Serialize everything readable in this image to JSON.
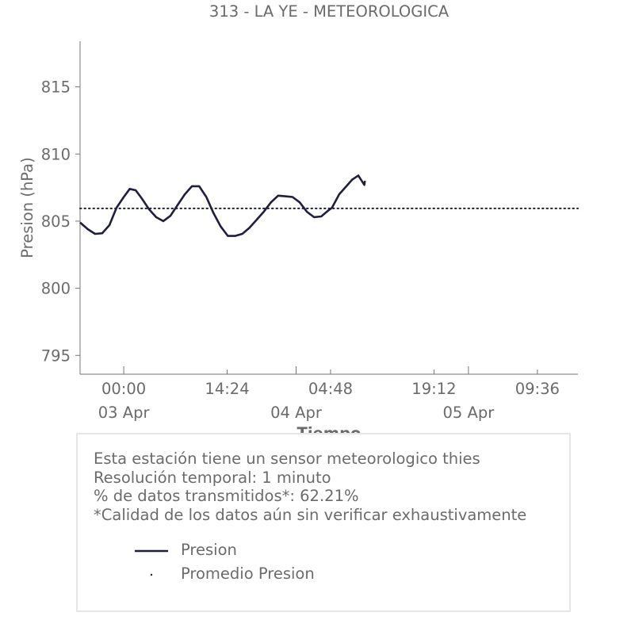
{
  "chart_data": {
    "type": "line",
    "title": "313 - LA YE - METEOROLOGICA",
    "xlabel": "Tiempo",
    "ylabel": "Presion (hPa)",
    "ylim": [
      793.6,
      818.4
    ],
    "xlim": [
      "2025-04-02 17:55",
      "2025-04-05 15:15"
    ],
    "y_ticks": [
      795,
      800,
      805,
      810,
      815
    ],
    "x_ticks": [
      {
        "t": "2025-04-03 00:00",
        "label": "00:00",
        "sublabel": "03 Apr"
      },
      {
        "t": "2025-04-03 14:24",
        "label": "14:24",
        "sublabel": ""
      },
      {
        "t": "2025-04-04 00:00",
        "label": "",
        "sublabel": "04 Apr"
      },
      {
        "t": "2025-04-04 04:48",
        "label": "04:48",
        "sublabel": ""
      },
      {
        "t": "2025-04-04 19:12",
        "label": "19:12",
        "sublabel": ""
      },
      {
        "t": "2025-04-05 00:00",
        "label": "",
        "sublabel": "05 Apr"
      },
      {
        "t": "2025-04-05 09:36",
        "label": "09:36",
        "sublabel": ""
      }
    ],
    "grid": false,
    "legend_position": "below",
    "series": [
      {
        "name": "Presion",
        "style": "solid",
        "color": "#1f1f3d",
        "points": [
          [
            "2025-04-02 17:55",
            804.9
          ],
          [
            "2025-04-02 19:00",
            804.4
          ],
          [
            "2025-04-02 20:00",
            804.05
          ],
          [
            "2025-04-02 21:00",
            804.1
          ],
          [
            "2025-04-02 22:00",
            804.7
          ],
          [
            "2025-04-02 23:00",
            806.0
          ],
          [
            "2025-04-03 00:00",
            806.8
          ],
          [
            "2025-04-03 00:50",
            807.4
          ],
          [
            "2025-04-03 01:40",
            807.3
          ],
          [
            "2025-04-03 02:30",
            806.7
          ],
          [
            "2025-04-03 03:30",
            805.9
          ],
          [
            "2025-04-03 04:30",
            805.3
          ],
          [
            "2025-04-03 05:30",
            805.0
          ],
          [
            "2025-04-03 06:30",
            805.4
          ],
          [
            "2025-04-03 07:30",
            806.2
          ],
          [
            "2025-04-03 08:30",
            807.0
          ],
          [
            "2025-04-03 09:30",
            807.6
          ],
          [
            "2025-04-03 10:30",
            807.6
          ],
          [
            "2025-04-03 11:30",
            806.8
          ],
          [
            "2025-04-03 12:30",
            805.6
          ],
          [
            "2025-04-03 13:30",
            804.6
          ],
          [
            "2025-04-03 14:30",
            803.9
          ],
          [
            "2025-04-03 15:30",
            803.9
          ],
          [
            "2025-04-03 16:30",
            804.05
          ],
          [
            "2025-04-03 17:30",
            804.5
          ],
          [
            "2025-04-03 18:30",
            805.1
          ],
          [
            "2025-04-03 19:30",
            805.7
          ],
          [
            "2025-04-03 20:30",
            806.4
          ],
          [
            "2025-04-03 21:30",
            806.9
          ],
          [
            "2025-04-03 22:30",
            806.85
          ],
          [
            "2025-04-03 23:30",
            806.8
          ],
          [
            "2025-04-04 00:30",
            806.4
          ],
          [
            "2025-04-04 01:30",
            805.7
          ],
          [
            "2025-04-04 02:30",
            805.3
          ],
          [
            "2025-04-04 03:30",
            805.35
          ],
          [
            "2025-04-04 04:30",
            805.8
          ],
          [
            "2025-04-04 05:00",
            806.0
          ],
          [
            "2025-04-04 06:00",
            807.0
          ],
          [
            "2025-04-04 07:00",
            807.6
          ],
          [
            "2025-04-04 07:50",
            808.1
          ],
          [
            "2025-04-04 08:40",
            808.4
          ],
          [
            "2025-04-04 09:30",
            807.7
          ],
          [
            "2025-04-04 09:35",
            808.0
          ]
        ]
      },
      {
        "name": "Promedio Presion",
        "style": "dotted",
        "color": "#1f1f3d",
        "value": 805.95
      }
    ]
  },
  "info": {
    "lines": [
      "Esta estación tiene un sensor meteorologico thies",
      "Resolución temporal: 1 minuto",
      "% de datos transmitidos*: 62.21%",
      "*Calidad de los datos aún sin verificar exhaustivamente"
    ]
  }
}
